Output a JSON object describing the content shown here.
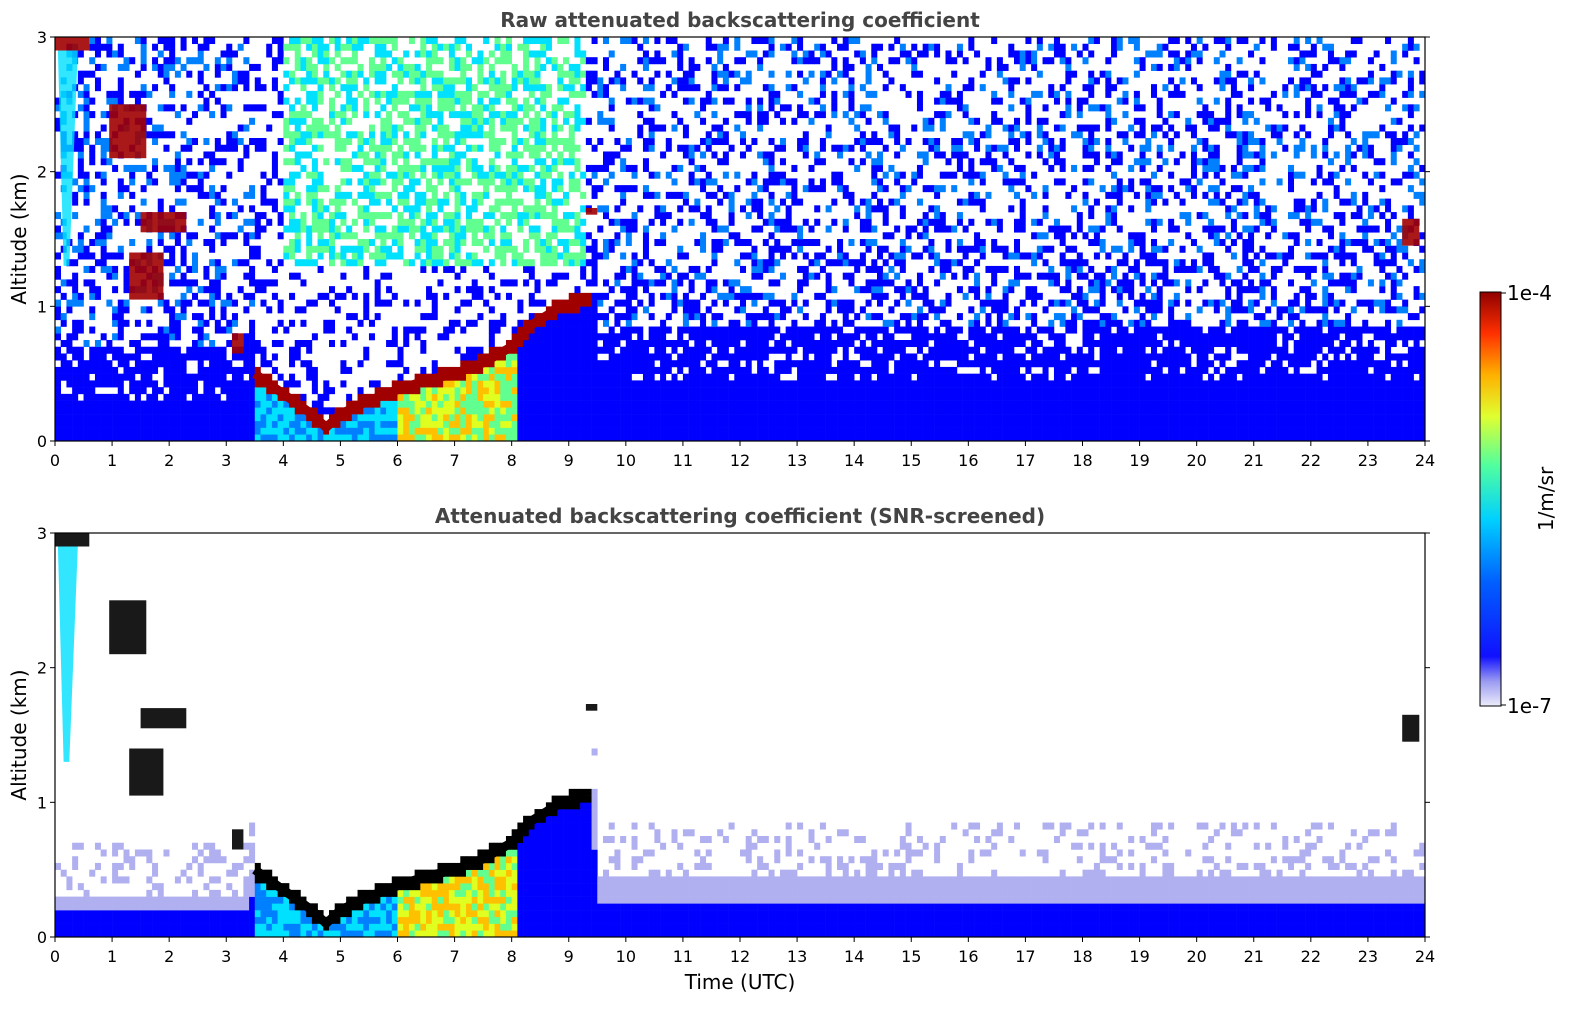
{
  "chart_data": [
    {
      "type": "heatmap",
      "title": "Raw attenuated backscattering coefficient",
      "xlabel": "",
      "ylabel": "Altitude (km)",
      "xlim": [
        0,
        24
      ],
      "ylim": [
        0,
        3
      ],
      "xticks": [
        "0",
        "1",
        "2",
        "3",
        "4",
        "5",
        "6",
        "7",
        "8",
        "9",
        "10",
        "11",
        "12",
        "13",
        "14",
        "15",
        "16",
        "17",
        "18",
        "19",
        "20",
        "21",
        "22",
        "23",
        "24"
      ],
      "yticks": [
        "0",
        "1",
        "2",
        "3"
      ],
      "screened": false,
      "boundary_layer_top_km": [
        [
          3.5,
          0.5
        ],
        [
          4.0,
          0.35
        ],
        [
          4.5,
          0.2
        ],
        [
          4.75,
          0.1
        ],
        [
          5.0,
          0.2
        ],
        [
          5.5,
          0.3
        ],
        [
          6.0,
          0.38
        ],
        [
          6.5,
          0.45
        ],
        [
          7.0,
          0.5
        ],
        [
          7.5,
          0.58
        ],
        [
          8.0,
          0.7
        ],
        [
          8.3,
          0.85
        ],
        [
          8.8,
          0.98
        ],
        [
          9.3,
          1.05
        ]
      ],
      "cloud_layers_km": [
        {
          "t": [
            0.0,
            0.6
          ],
          "alt": [
            2.9,
            3.0
          ]
        },
        {
          "t": [
            0.95,
            1.6
          ],
          "alt": [
            2.1,
            2.5
          ]
        },
        {
          "t": [
            1.5,
            2.3
          ],
          "alt": [
            1.55,
            1.7
          ]
        },
        {
          "t": [
            1.3,
            1.9
          ],
          "alt": [
            1.05,
            1.4
          ]
        },
        {
          "t": [
            3.1,
            3.3
          ],
          "alt": [
            0.65,
            0.8
          ]
        },
        {
          "t": [
            9.3,
            9.5
          ],
          "alt": [
            1.68,
            1.73
          ]
        },
        {
          "t": [
            23.6,
            23.9
          ],
          "alt": [
            1.45,
            1.65
          ]
        }
      ],
      "colorbar": {
        "min": "1e-7",
        "max": "1e-4",
        "label": "1/m/sr",
        "scale": "log"
      }
    },
    {
      "type": "heatmap",
      "title": "Attenuated backscattering coefficient (SNR-screened)",
      "xlabel": "Time (UTC)",
      "ylabel": "Altitude (km)",
      "xlim": [
        0,
        24
      ],
      "ylim": [
        0,
        3
      ],
      "xticks": [
        "0",
        "1",
        "2",
        "3",
        "4",
        "5",
        "6",
        "7",
        "8",
        "9",
        "10",
        "11",
        "12",
        "13",
        "14",
        "15",
        "16",
        "17",
        "18",
        "19",
        "20",
        "21",
        "22",
        "23",
        "24"
      ],
      "yticks": [
        "0",
        "1",
        "2",
        "3"
      ],
      "screened": true,
      "boundary_layer_top_km": [
        [
          3.5,
          0.5
        ],
        [
          4.0,
          0.35
        ],
        [
          4.5,
          0.2
        ],
        [
          4.75,
          0.1
        ],
        [
          5.0,
          0.2
        ],
        [
          5.5,
          0.3
        ],
        [
          6.0,
          0.38
        ],
        [
          6.5,
          0.45
        ],
        [
          7.0,
          0.5
        ],
        [
          7.5,
          0.58
        ],
        [
          8.0,
          0.7
        ],
        [
          8.3,
          0.85
        ],
        [
          8.8,
          0.98
        ],
        [
          9.3,
          1.05
        ]
      ],
      "colorbar": {
        "min": "1e-7",
        "max": "1e-4",
        "label": "1/m/sr",
        "scale": "log"
      }
    }
  ],
  "colors": {
    "colormap": [
      "#e8e8f8",
      "#b0b0f0",
      "#0000ff",
      "#0080ff",
      "#00e0ff",
      "#60ff90",
      "#e0ff20",
      "#ffc000",
      "#ff4000",
      "#a00000"
    ],
    "saturated": "#000000",
    "title": "#444444"
  }
}
